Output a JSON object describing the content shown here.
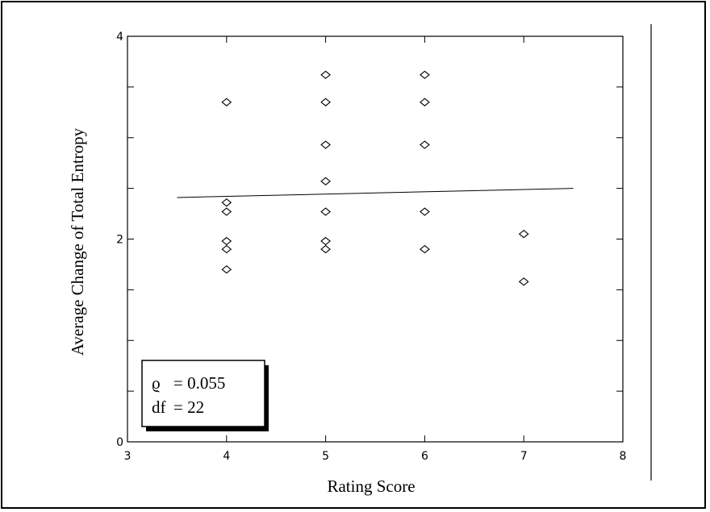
{
  "chart_data": {
    "type": "scatter",
    "xlabel": "Rating Score",
    "ylabel": "Average Change of Total Entropy",
    "xlim": [
      3,
      8
    ],
    "ylim": [
      0,
      4
    ],
    "x_ticks": [
      "3",
      "4",
      "5",
      "6",
      "7",
      "8"
    ],
    "y_ticks": [
      "0",
      "2",
      "4"
    ],
    "points": [
      {
        "x": 4,
        "y": 3.35
      },
      {
        "x": 4,
        "y": 2.36
      },
      {
        "x": 4,
        "y": 2.27
      },
      {
        "x": 4,
        "y": 1.98
      },
      {
        "x": 4,
        "y": 1.9
      },
      {
        "x": 4,
        "y": 1.7
      },
      {
        "x": 5,
        "y": 3.62
      },
      {
        "x": 5,
        "y": 3.35
      },
      {
        "x": 5,
        "y": 2.93
      },
      {
        "x": 5,
        "y": 2.57
      },
      {
        "x": 5,
        "y": 2.27
      },
      {
        "x": 5,
        "y": 1.98
      },
      {
        "x": 5,
        "y": 1.9
      },
      {
        "x": 6,
        "y": 3.62
      },
      {
        "x": 6,
        "y": 3.35
      },
      {
        "x": 6,
        "y": 2.93
      },
      {
        "x": 6,
        "y": 2.27
      },
      {
        "x": 6,
        "y": 1.9
      },
      {
        "x": 7,
        "y": 2.05
      },
      {
        "x": 7,
        "y": 1.58
      }
    ],
    "regression_line": {
      "x": [
        3.5,
        7.5
      ],
      "y": [
        2.41,
        2.5
      ]
    },
    "marker": "diamond",
    "grid": false,
    "legend": "bottom-left",
    "stats": [
      {
        "symbol": "ϱ",
        "value": "= 0.055"
      },
      {
        "symbol": "df",
        "value": "= 22"
      }
    ]
  }
}
